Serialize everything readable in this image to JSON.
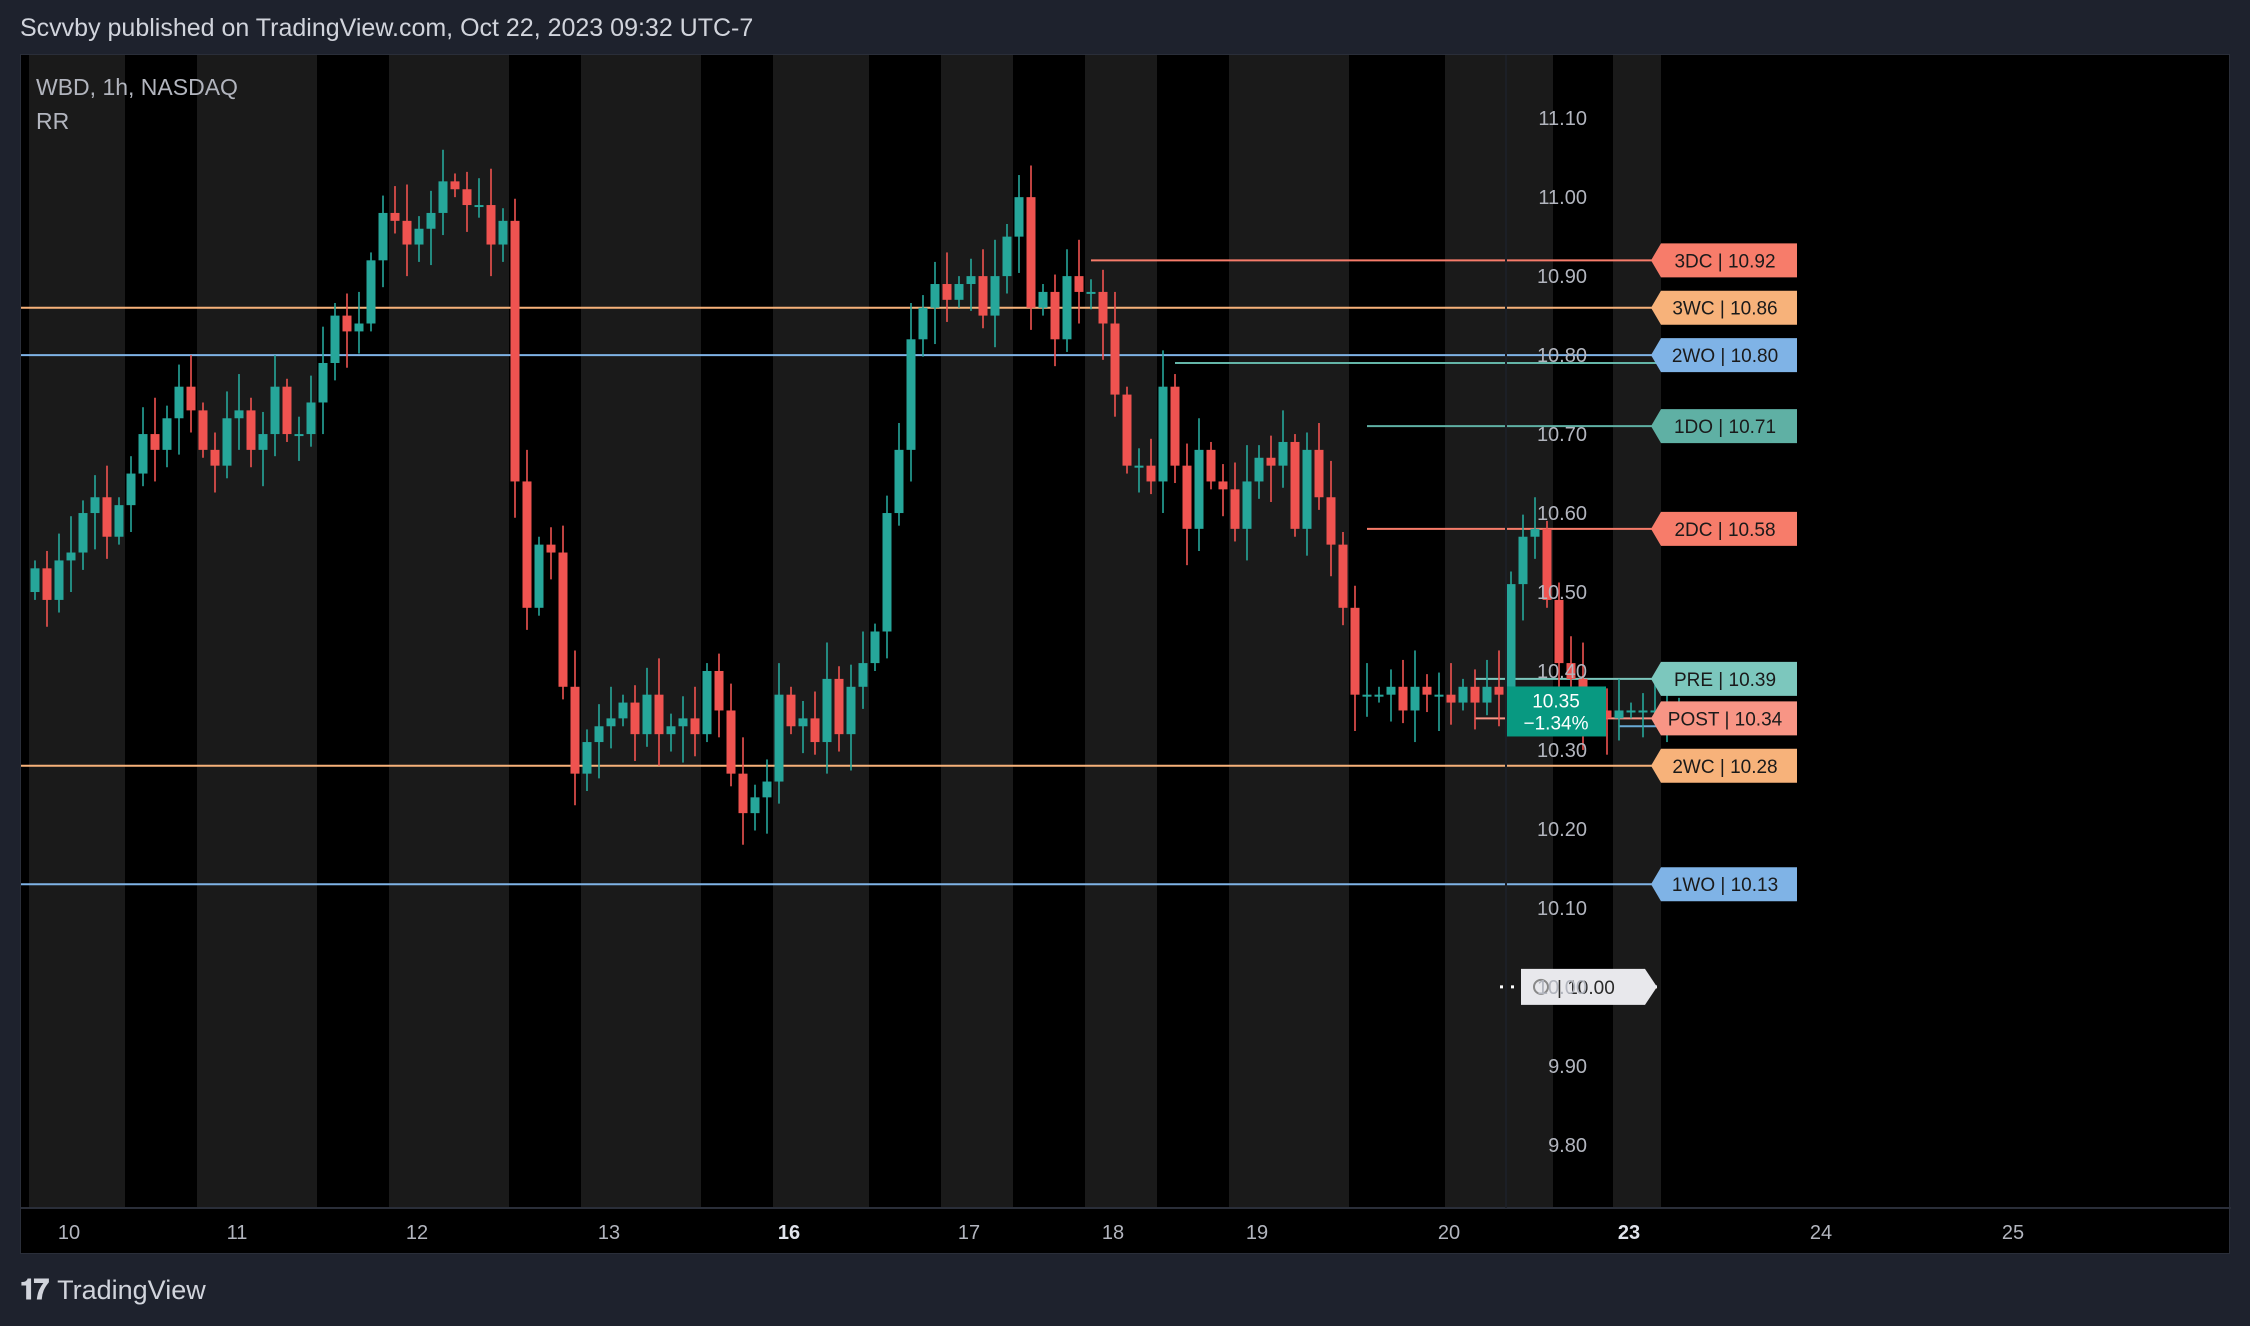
{
  "header": {
    "published": "Scvvby published on TradingView.com, Oct 22, 2023 09:32 UTC-7"
  },
  "legend": {
    "symbol": "WBD, 1h, NASDAQ",
    "indicator": "RR"
  },
  "footer": {
    "brand": "TradingView"
  },
  "chart_data": {
    "type": "candlestick",
    "symbol": "WBD",
    "interval": "1h",
    "exchange": "NASDAQ",
    "ylim": [
      9.72,
      11.18
    ],
    "y_ticks": [
      "11.10",
      "11.00",
      "10.90",
      "10.80",
      "10.70",
      "10.60",
      "10.50",
      "10.40",
      "10.30",
      "10.20",
      "10.10",
      "10.00",
      "9.90",
      "9.80"
    ],
    "y_tick_values": [
      11.1,
      11.0,
      10.9,
      10.8,
      10.7,
      10.6,
      10.5,
      10.4,
      10.3,
      10.2,
      10.1,
      10.0,
      9.9,
      9.8
    ],
    "x_ticks": [
      {
        "label": "10",
        "bold": false
      },
      {
        "label": "11",
        "bold": false
      },
      {
        "label": "12",
        "bold": false
      },
      {
        "label": "13",
        "bold": false
      },
      {
        "label": "16",
        "bold": true
      },
      {
        "label": "17",
        "bold": false
      },
      {
        "label": "18",
        "bold": false
      },
      {
        "label": "19",
        "bold": false
      },
      {
        "label": "20",
        "bold": false
      },
      {
        "label": "23",
        "bold": true
      },
      {
        "label": "24",
        "bold": false
      },
      {
        "label": "25",
        "bold": false
      }
    ],
    "sessions": [
      {
        "day": "10",
        "start": -0.5,
        "end": 7.5
      },
      {
        "day": "11",
        "start": 13.5,
        "end": 23.5
      },
      {
        "day": "12",
        "start": 29.5,
        "end": 39.5
      },
      {
        "day": "13",
        "start": 45.5,
        "end": 55.5
      },
      {
        "day": "16",
        "start": 61.5,
        "end": 69.5
      },
      {
        "day": "17",
        "start": 75.5,
        "end": 81.5
      },
      {
        "day": "18",
        "start": 87.5,
        "end": 93.5
      },
      {
        "day": "19",
        "start": 99.5,
        "end": 109.5
      },
      {
        "day": "20",
        "start": 117.5,
        "end": 126.5
      },
      {
        "day": "22",
        "start": 131.5,
        "end": 135.5
      }
    ],
    "bars_open": [
      10.5,
      10.53,
      10.49,
      10.54,
      10.55,
      10.6,
      10.62,
      10.57,
      10.61,
      10.65,
      10.7,
      10.68,
      10.72,
      10.76,
      10.73,
      10.68,
      10.66,
      10.72,
      10.73,
      10.68,
      10.7,
      10.76,
      10.7,
      10.7,
      10.74,
      10.79,
      10.85,
      10.83,
      10.84,
      10.92,
      10.98,
      10.97,
      10.94,
      10.96,
      10.98,
      11.02,
      11.01,
      10.99,
      10.99,
      10.94,
      10.97,
      10.64,
      10.48,
      10.56,
      10.55,
      10.38,
      10.27,
      10.31,
      10.33,
      10.34,
      10.36,
      10.32,
      10.37,
      10.32,
      10.33,
      10.34,
      10.32,
      10.4,
      10.35,
      10.27,
      10.22,
      10.24,
      10.26,
      10.37,
      10.33,
      10.34,
      10.31,
      10.39,
      10.32,
      10.38,
      10.41,
      10.45,
      10.6,
      10.68,
      10.82,
      10.86,
      10.89,
      10.87,
      10.89,
      10.9,
      10.85,
      10.9,
      10.95,
      11.0,
      10.86,
      10.88,
      10.82,
      10.9,
      10.88,
      10.88,
      10.84,
      10.75,
      10.66,
      10.66,
      10.64,
      10.76,
      10.66,
      10.58,
      10.68,
      10.64,
      10.63,
      10.58,
      10.64,
      10.67,
      10.66,
      10.69,
      10.58,
      10.68,
      10.62,
      10.56,
      10.48,
      10.37,
      10.37,
      10.37,
      10.38,
      10.35,
      10.38,
      10.37,
      10.37,
      10.36,
      10.38,
      10.36,
      10.38,
      10.37,
      10.51,
      10.57,
      10.58,
      10.49,
      10.41,
      10.39,
      10.34,
      10.35,
      10.34,
      10.35,
      10.35,
      10.35,
      10.35,
      10.35
    ],
    "bars_close": [
      10.53,
      10.49,
      10.54,
      10.55,
      10.6,
      10.62,
      10.57,
      10.61,
      10.65,
      10.7,
      10.68,
      10.72,
      10.76,
      10.73,
      10.68,
      10.66,
      10.72,
      10.73,
      10.68,
      10.7,
      10.76,
      10.7,
      10.7,
      10.74,
      10.79,
      10.85,
      10.83,
      10.84,
      10.92,
      10.98,
      10.97,
      10.94,
      10.96,
      10.98,
      11.02,
      11.01,
      10.99,
      10.99,
      10.94,
      10.97,
      10.64,
      10.48,
      10.56,
      10.55,
      10.38,
      10.27,
      10.31,
      10.33,
      10.34,
      10.36,
      10.32,
      10.37,
      10.32,
      10.33,
      10.34,
      10.32,
      10.4,
      10.35,
      10.27,
      10.22,
      10.24,
      10.26,
      10.37,
      10.33,
      10.34,
      10.31,
      10.39,
      10.32,
      10.38,
      10.41,
      10.45,
      10.6,
      10.68,
      10.82,
      10.86,
      10.89,
      10.87,
      10.89,
      10.9,
      10.85,
      10.9,
      10.95,
      11.0,
      10.86,
      10.88,
      10.82,
      10.9,
      10.88,
      10.88,
      10.84,
      10.75,
      10.66,
      10.66,
      10.64,
      10.76,
      10.66,
      10.58,
      10.68,
      10.64,
      10.63,
      10.58,
      10.64,
      10.67,
      10.66,
      10.69,
      10.58,
      10.68,
      10.62,
      10.56,
      10.48,
      10.37,
      10.37,
      10.37,
      10.38,
      10.35,
      10.38,
      10.37,
      10.37,
      10.36,
      10.38,
      10.36,
      10.38,
      10.37,
      10.51,
      10.57,
      10.58,
      10.49,
      10.41,
      10.39,
      10.34,
      10.35,
      10.34,
      10.35,
      10.35,
      10.35,
      10.35,
      10.35,
      10.35
    ],
    "level_lines": [
      {
        "label": "3DC | 10.92",
        "value": 10.92,
        "color": "#f77c6a",
        "start_bar": 88
      },
      {
        "label": "3WC | 10.86",
        "value": 10.86,
        "color": "#f7b27a",
        "start_bar": "full"
      },
      {
        "label": "2WO | 10.80",
        "value": 10.8,
        "color": "#7fb3e6",
        "start_bar": "full"
      },
      {
        "label": "",
        "value": 10.79,
        "color": "#64b5a8",
        "start_bar": 95
      },
      {
        "label": "1DO | 10.71",
        "value": 10.71,
        "color": "#5fb0a4",
        "start_bar": 111
      },
      {
        "label": "2DC | 10.58",
        "value": 10.58,
        "color": "#f77c6a",
        "start_bar": 111
      },
      {
        "label": "PRE | 10.39",
        "value": 10.39,
        "color": "#7cc7bd",
        "start_bar": 120
      },
      {
        "label": "POST | 10.34",
        "value": 10.34,
        "color": "#f89585",
        "start_bar": 120
      },
      {
        "label": "",
        "value": 10.33,
        "color": "#6aa9d6",
        "start_bar": 132
      },
      {
        "label": "2WC | 10.28",
        "value": 10.28,
        "color": "#f7b27a",
        "start_bar": "full"
      },
      {
        "label": "1WO | 10.13",
        "value": 10.13,
        "color": "#7fb3e6",
        "start_bar": "full"
      }
    ],
    "marker": {
      "label": "| 10.00",
      "value": 10.0,
      "icon": "medal-icon"
    },
    "last_price": {
      "value": "10.35",
      "change": "−1.34%",
      "color": "#089981"
    },
    "colors": {
      "up": "#26a69a",
      "down": "#ef5350",
      "background": "#000000",
      "session": "#1a1a1a",
      "axis_text": "#b2b5be"
    }
  }
}
